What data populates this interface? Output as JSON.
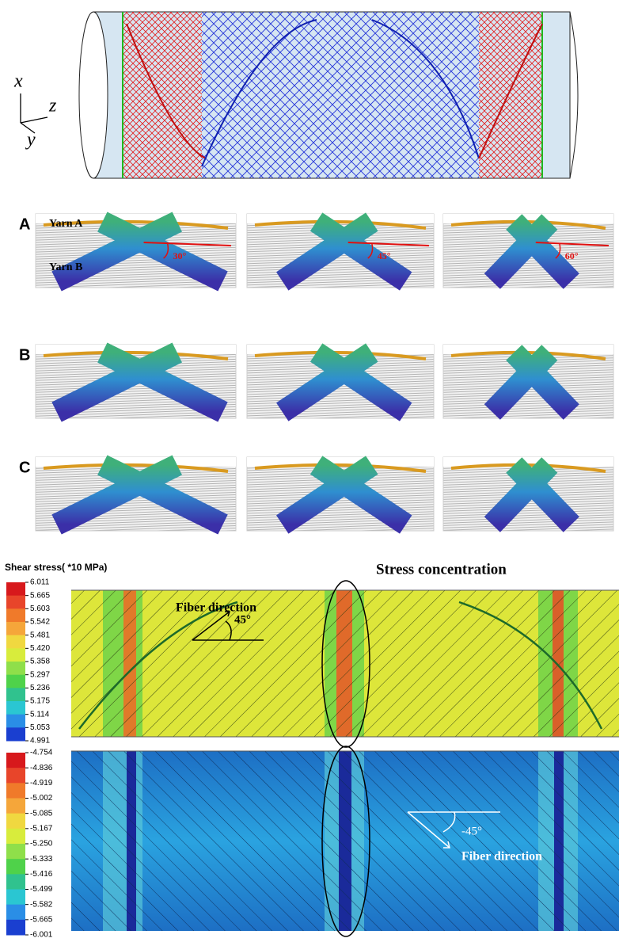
{
  "axes": {
    "x": "x",
    "z": "z",
    "y": "y"
  },
  "panels": {
    "row_labels": [
      "A",
      "B",
      "C"
    ],
    "yarn_a": "Yarn A",
    "yarn_b": "Yarn B",
    "angles": [
      "30°",
      "45°",
      "60°"
    ]
  },
  "legend": {
    "title": "Shear stress( *10 MPa)",
    "top_values": [
      "6.011",
      "5.665",
      "5.603",
      "5.542",
      "5.481",
      "5.420",
      "5.358",
      "5.297",
      "5.236",
      "5.175",
      "5.114",
      "5.053",
      "4.991"
    ],
    "bottom_values": [
      "-4.754",
      "-4.836",
      "-4.919",
      "-5.002",
      "-5.085",
      "-5.167",
      "-5.250",
      "-5.333",
      "-5.416",
      "-5.499",
      "-5.582",
      "-5.665",
      "-6.001"
    ]
  },
  "stress": {
    "concentration": "Stress concentration",
    "top_fiber": "Fiber direction",
    "top_angle": "45°",
    "bottom_fiber": "Fiber direction",
    "bottom_angle": "-45°"
  }
}
